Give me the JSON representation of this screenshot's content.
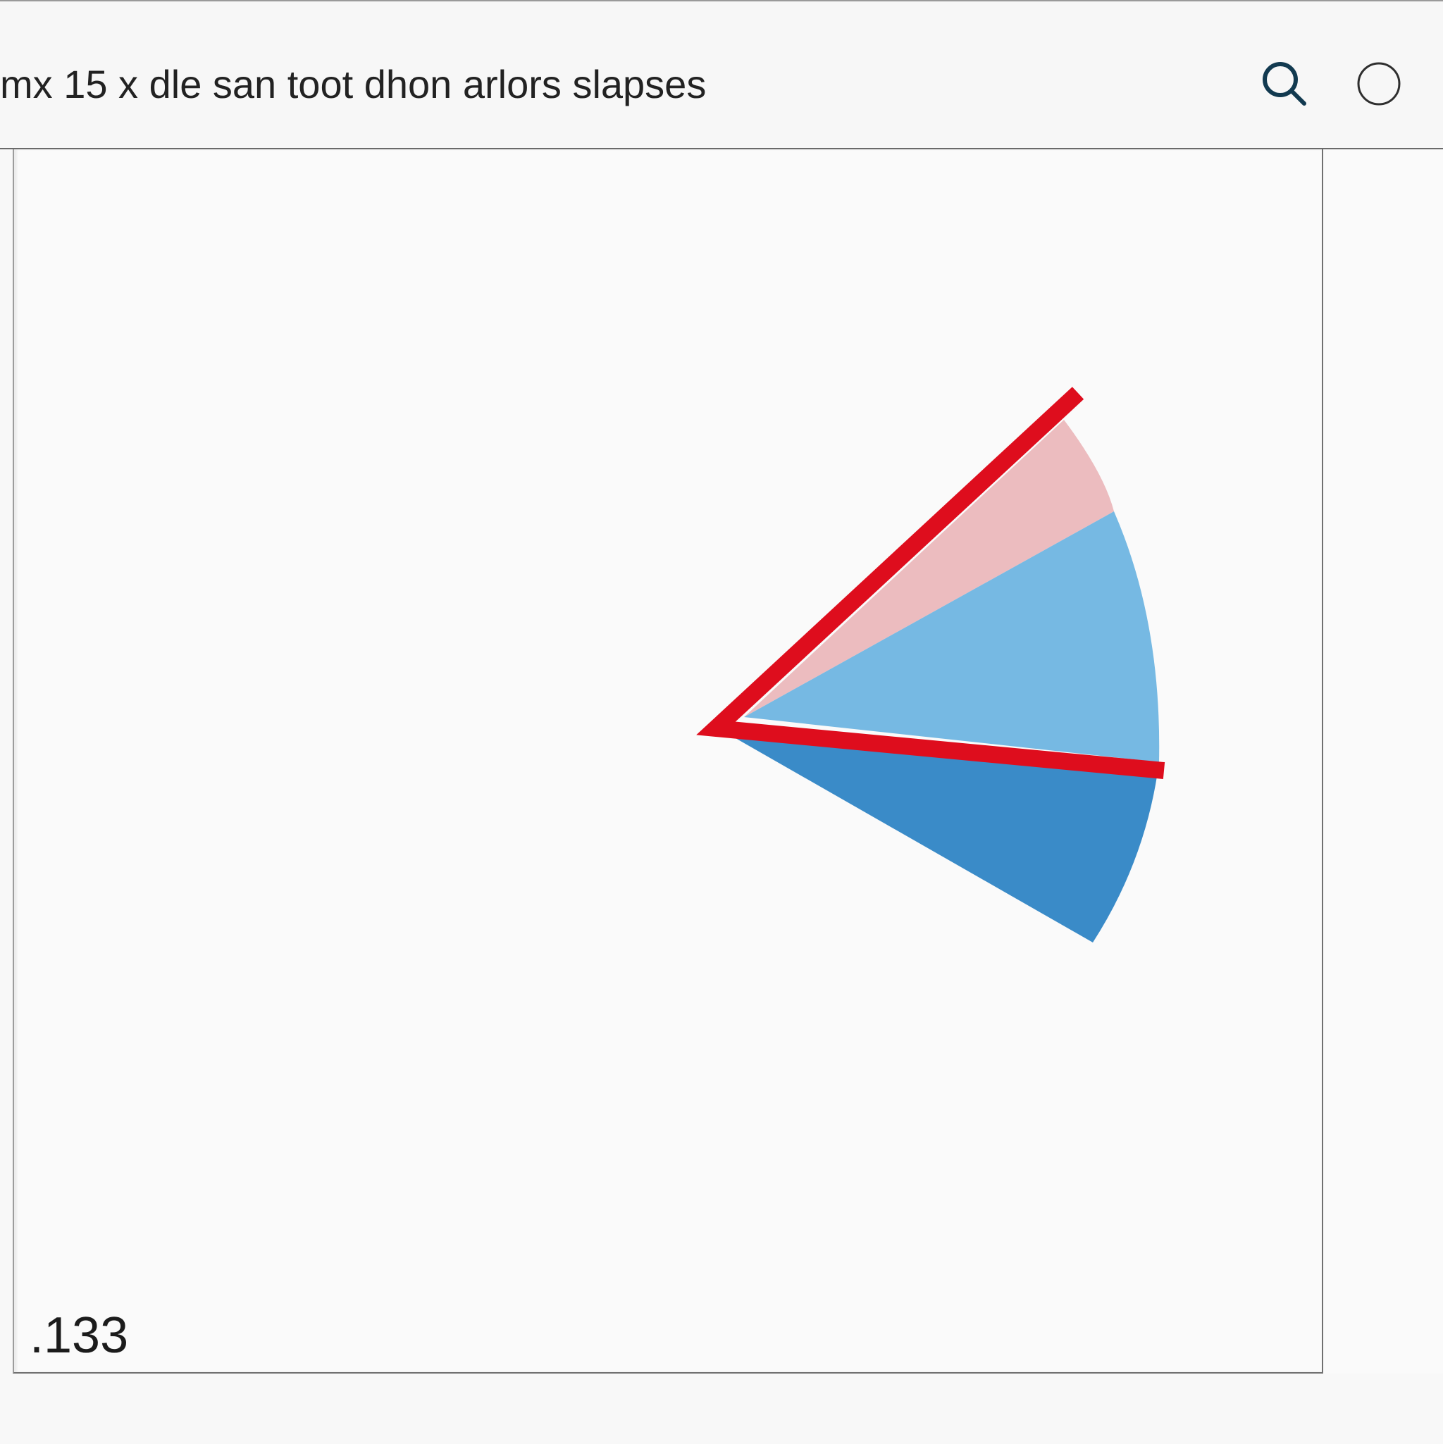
{
  "window": {
    "title": "mx 15 x dle san toot dhon arlors slapses"
  },
  "toolbar": {
    "search_icon": "search-icon",
    "circle_icon": "circle-icon"
  },
  "canvas": {
    "readout": ".133",
    "colors": {
      "wedge_light_red": "#ecbcbf",
      "wedge_light_blue": "#76b9e3",
      "wedge_blue": "#3a8bc8",
      "red_line": "#de0d1d"
    }
  }
}
